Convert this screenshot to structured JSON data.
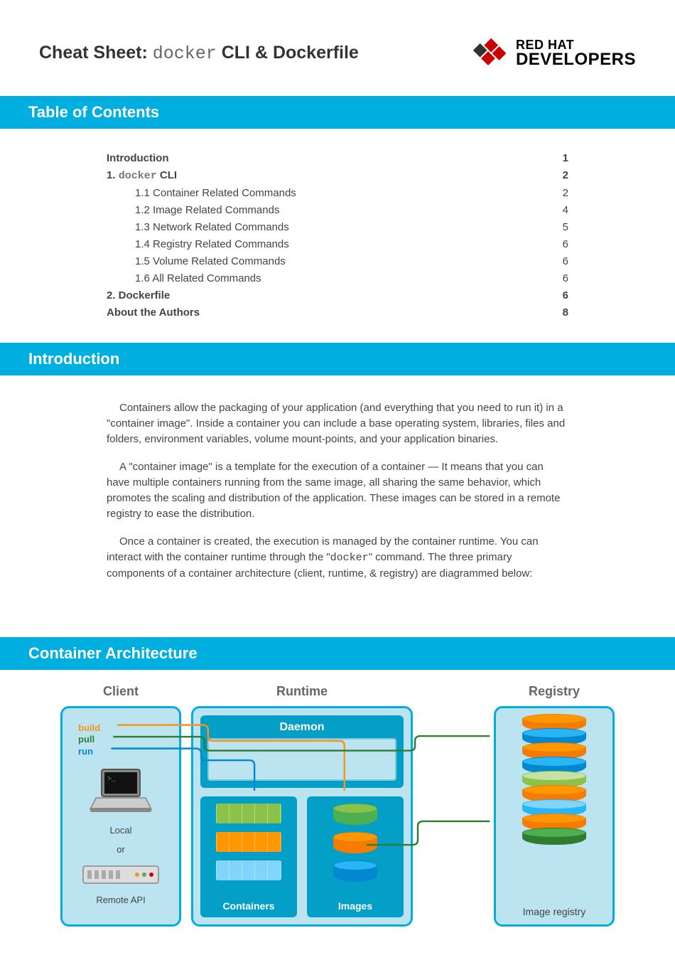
{
  "header": {
    "title_prefix": "Cheat Sheet: ",
    "title_mono": "docker",
    "title_suffix": " CLI & Dockerfile",
    "logo_top": "RED HAT",
    "logo_bottom": "DEVELOPERS"
  },
  "sections": {
    "toc": "Table of Contents",
    "intro": "Introduction",
    "arch": "Container Architecture"
  },
  "toc": [
    {
      "label": "Introduction",
      "page": "1",
      "bold": true
    },
    {
      "prefix": "1. ",
      "mono": "docker",
      "suffix": " CLI",
      "page": "2",
      "bold": true
    },
    {
      "label": "1.1 Container Related Commands",
      "page": "2",
      "sub": true
    },
    {
      "label": "1.2 Image Related Commands",
      "page": "4",
      "sub": true
    },
    {
      "label": "1.3 Network Related Commands",
      "page": "5",
      "sub": true
    },
    {
      "label": "1.4 Registry Related Commands",
      "page": "6",
      "sub": true
    },
    {
      "label": "1.5 Volume Related Commands",
      "page": "6",
      "sub": true
    },
    {
      "label": "1.6 All Related Commands",
      "page": "6",
      "sub": true
    },
    {
      "label": "2. Dockerfile",
      "page": "6",
      "bold": true
    },
    {
      "label": "About the Authors",
      "page": "8",
      "bold": true
    }
  ],
  "intro": {
    "p1": "Containers allow the packaging of your application (and everything that you need to run it) in a \"container image\". Inside a container you can include a base operating system, libraries, files and folders, environment variables, volume mount-points, and your application binaries.",
    "p2": "A \"container image\" is a template for the execution of a container — It means that you can have multiple containers running from the same image, all sharing the same behavior, which promotes the scaling and distribution of the application. These images can be stored in a remote registry to ease the distribution.",
    "p3a": "Once a container is created, the execution is managed by the container runtime. You can interact with the container runtime through the \"",
    "p3mono": "docker",
    "p3b": "\" command. The three primary components of a container architecture (client, runtime, & registry) are diagrammed below:"
  },
  "arch": {
    "columns": {
      "client": "Client",
      "runtime": "Runtime",
      "registry": "Registry"
    },
    "commands": {
      "build": "build",
      "pull": "pull",
      "run": "run"
    },
    "client": {
      "local": "Local",
      "or": "or",
      "remote": "Remote API"
    },
    "runtime": {
      "daemon": "Daemon",
      "containers": "Containers",
      "images": "Images"
    },
    "registry": {
      "label": "Image registry"
    },
    "colors": {
      "cyan": "#00aee0",
      "box_bg": "#bce4f0",
      "daemon_bg": "#039fc7",
      "green_light": "#8bc34a",
      "green": "#4caf50",
      "green_dark": "#2e7d32",
      "orange": "#ff9800",
      "orange_dark": "#f57c00",
      "blue": "#29b6f6",
      "blue_mid": "#0288d1",
      "build_line": "#f7941d",
      "pull_line": "#2e7d32",
      "run_line": "#0288d1",
      "line_width": 2.5
    },
    "container_bars": [
      "#8bc34a",
      "#ff9800",
      "#81d4fa"
    ],
    "image_cylinders": [
      {
        "body": "#4caf50",
        "top": "#8bc34a"
      },
      {
        "body": "#f57c00",
        "top": "#ff9800"
      },
      {
        "body": "#0288d1",
        "top": "#29b6f6"
      }
    ],
    "registry_cylinders": [
      {
        "body": "#f57c00",
        "top": "#ff9800"
      },
      {
        "body": "#0288d1",
        "top": "#29b6f6"
      },
      {
        "body": "#f57c00",
        "top": "#ff9800"
      },
      {
        "body": "#0288d1",
        "top": "#29b6f6"
      },
      {
        "body": "#8bc34a",
        "top": "#c5e1a5"
      },
      {
        "body": "#f57c00",
        "top": "#ff9800"
      },
      {
        "body": "#29b6f6",
        "top": "#81d4fa"
      },
      {
        "body": "#f57c00",
        "top": "#ff9800"
      },
      {
        "body": "#2e7d32",
        "top": "#4caf50"
      }
    ]
  }
}
